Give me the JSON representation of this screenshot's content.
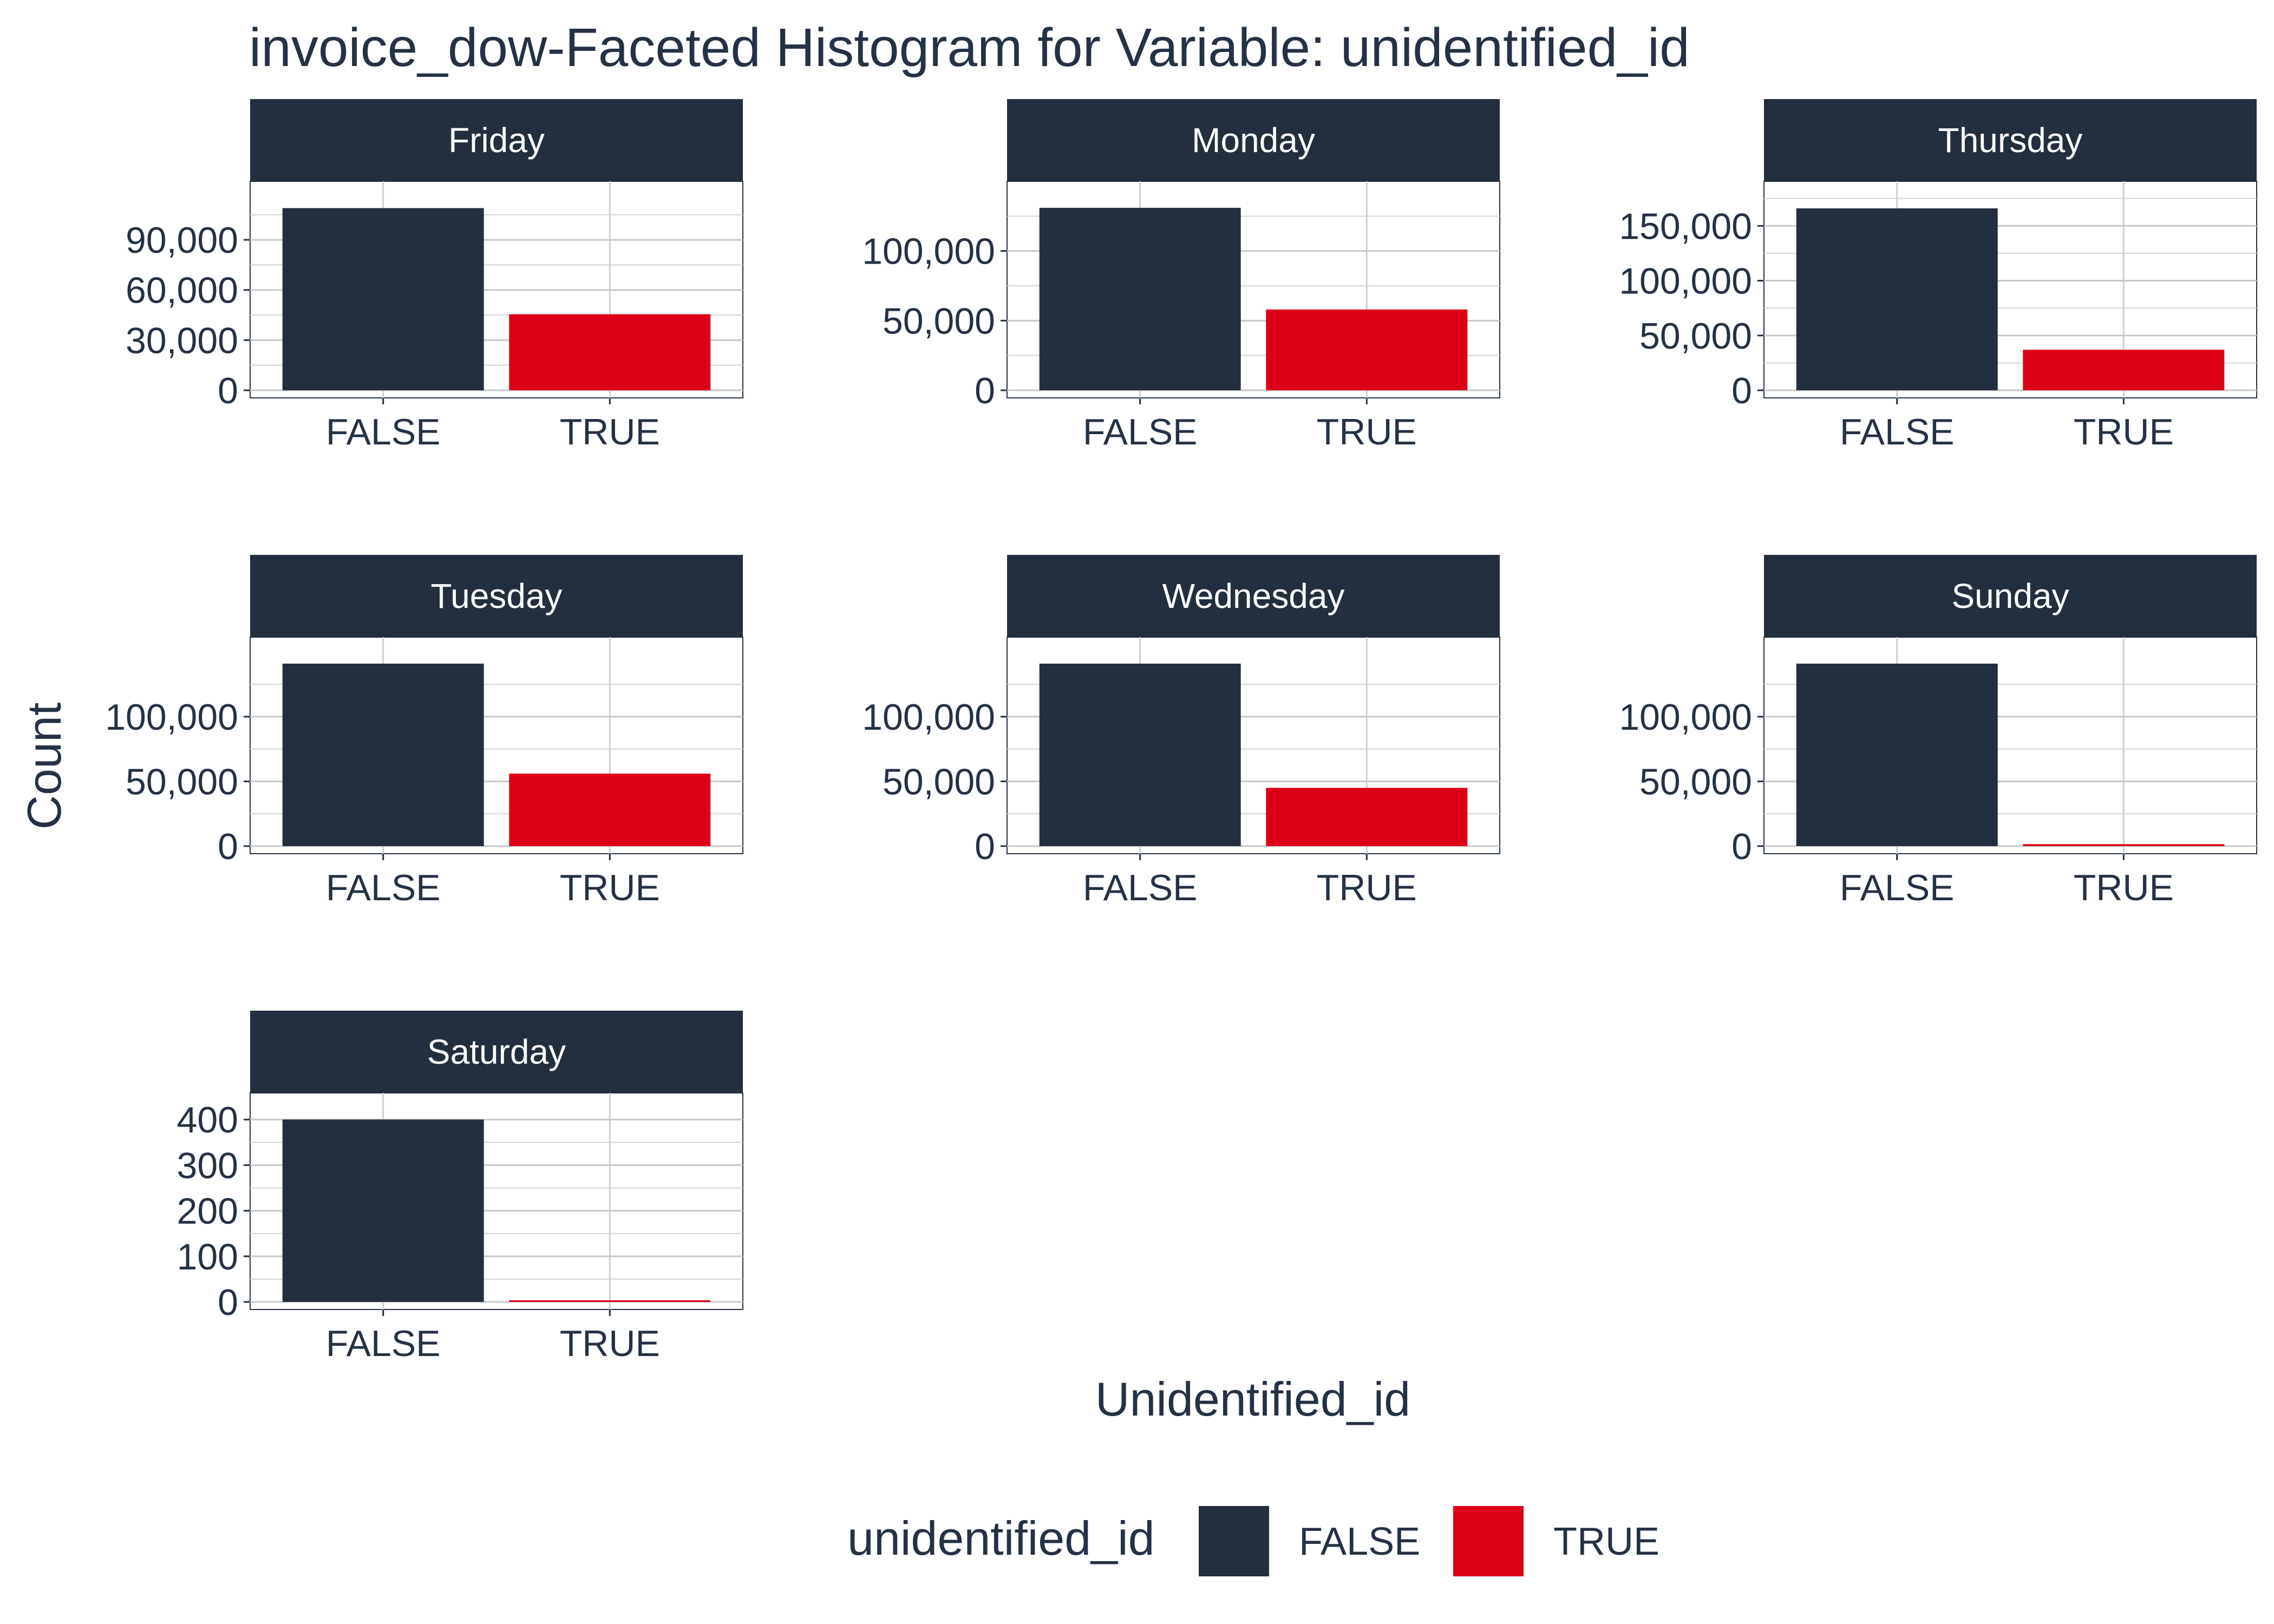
{
  "chart_data": {
    "type": "bar",
    "title": "invoice_dow-Faceted Histogram for Variable: unidentified_id",
    "xlabel": "Unidentified_id",
    "ylabel": "Count",
    "categories": [
      "FALSE",
      "TRUE"
    ],
    "grid": true,
    "legend": {
      "title": "unidentified_id",
      "placement": "bottom",
      "entries": [
        {
          "label": "FALSE",
          "color": "#232F3E"
        },
        {
          "label": "TRUE",
          "color": "#DB0018"
        }
      ]
    },
    "colors": {
      "FALSE": "#232F3E",
      "TRUE": "#DB0018",
      "strip": "#232F3E",
      "strip_text": "#FFFFFF"
    },
    "facets": [
      {
        "label": "Friday",
        "values": [
          109000,
          45500
        ],
        "ylim": [
          0,
          120000
        ],
        "yticks": [
          0,
          30000,
          60000,
          90000
        ],
        "ytick_labels": [
          "0",
          "30,000",
          "60,000",
          "90,000"
        ]
      },
      {
        "label": "Monday",
        "values": [
          131000,
          58000
        ],
        "ylim": [
          0,
          144000
        ],
        "yticks": [
          0,
          50000,
          100000
        ],
        "ytick_labels": [
          "0",
          "50,000",
          "100,000"
        ]
      },
      {
        "label": "Thursday",
        "values": [
          166000,
          37000
        ],
        "ylim": [
          0,
          183000
        ],
        "yticks": [
          0,
          50000,
          100000,
          150000
        ],
        "ytick_labels": [
          "0",
          "50,000",
          "100,000",
          "150,000"
        ]
      },
      {
        "label": "Tuesday",
        "values": [
          141000,
          56000
        ],
        "ylim": [
          0,
          155000
        ],
        "yticks": [
          0,
          50000,
          100000
        ],
        "ytick_labels": [
          "0",
          "50,000",
          "100,000"
        ]
      },
      {
        "label": "Wednesday",
        "values": [
          141000,
          45000
        ],
        "ylim": [
          0,
          155000
        ],
        "yticks": [
          0,
          50000,
          100000
        ],
        "ytick_labels": [
          "0",
          "50,000",
          "100,000"
        ]
      },
      {
        "label": "Sunday",
        "values": [
          141000,
          1500
        ],
        "ylim": [
          0,
          155000
        ],
        "yticks": [
          0,
          50000,
          100000
        ],
        "ytick_labels": [
          "0",
          "50,000",
          "100,000"
        ]
      },
      {
        "label": "Saturday",
        "values": [
          400,
          1
        ],
        "ylim": [
          0,
          440
        ],
        "yticks": [
          0,
          100,
          200,
          300,
          400
        ],
        "ytick_labels": [
          "0",
          "100",
          "200",
          "300",
          "400"
        ]
      }
    ]
  }
}
